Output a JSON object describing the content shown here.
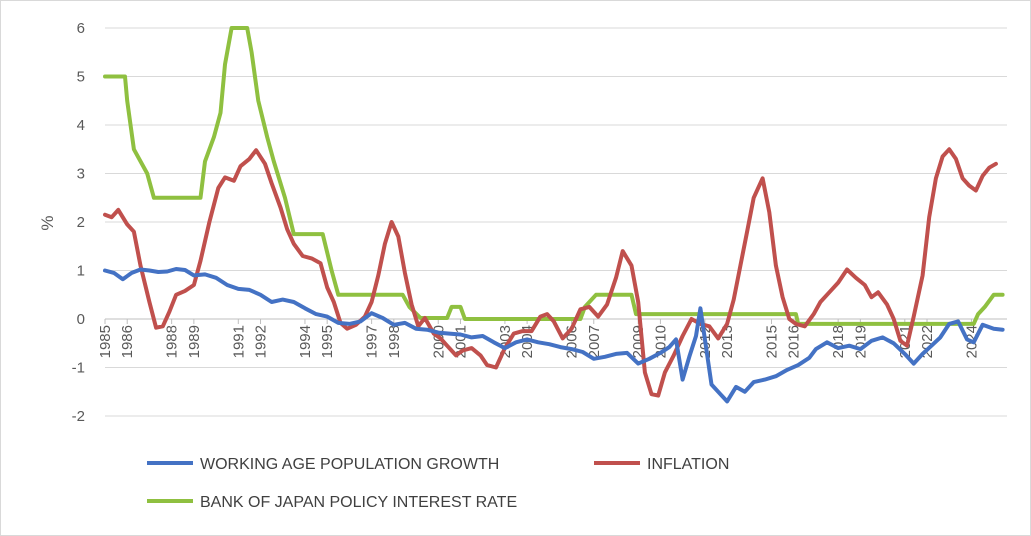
{
  "chart_data": {
    "type": "line",
    "title": "",
    "xlabel": "",
    "ylabel": "%",
    "xlim": [
      1985.0,
      2025.6
    ],
    "ylim": [
      -2,
      6
    ],
    "y_ticks": [
      -2,
      -1,
      0,
      1,
      2,
      3,
      4,
      5,
      6
    ],
    "x_ticks": [
      1985,
      1986,
      1988,
      1989,
      1991,
      1992,
      1994,
      1995,
      1997,
      1998,
      2000,
      2001,
      2003,
      2004,
      2006,
      2007,
      2009,
      2010,
      2012,
      2013,
      2015,
      2016,
      2018,
      2019,
      2021,
      2022,
      2024
    ],
    "grid": "horizontal",
    "legend_position": "bottom",
    "series": [
      {
        "name": "WORKING AGE POPULATION GROWTH",
        "color": "#4472c4",
        "points": [
          [
            1985.0,
            1.0
          ],
          [
            1985.4,
            0.95
          ],
          [
            1985.8,
            0.82
          ],
          [
            1986.2,
            0.95
          ],
          [
            1986.6,
            1.02
          ],
          [
            1987.0,
            1.0
          ],
          [
            1987.4,
            0.97
          ],
          [
            1987.8,
            0.98
          ],
          [
            1988.2,
            1.03
          ],
          [
            1988.6,
            1.01
          ],
          [
            1989.0,
            0.9
          ],
          [
            1989.5,
            0.92
          ],
          [
            1990.0,
            0.85
          ],
          [
            1990.5,
            0.7
          ],
          [
            1991.0,
            0.62
          ],
          [
            1991.5,
            0.6
          ],
          [
            1992.0,
            0.5
          ],
          [
            1992.5,
            0.35
          ],
          [
            1993.0,
            0.4
          ],
          [
            1993.5,
            0.35
          ],
          [
            1994.0,
            0.22
          ],
          [
            1994.5,
            0.1
          ],
          [
            1995.0,
            0.05
          ],
          [
            1995.5,
            -0.08
          ],
          [
            1996.0,
            -0.1
          ],
          [
            1996.5,
            -0.05
          ],
          [
            1997.0,
            0.12
          ],
          [
            1997.5,
            0.02
          ],
          [
            1998.0,
            -0.12
          ],
          [
            1998.5,
            -0.08
          ],
          [
            1999.0,
            -0.2
          ],
          [
            1999.5,
            -0.22
          ],
          [
            2000.0,
            -0.28
          ],
          [
            2000.5,
            -0.3
          ],
          [
            2001.0,
            -0.32
          ],
          [
            2001.5,
            -0.38
          ],
          [
            2002.0,
            -0.35
          ],
          [
            2002.5,
            -0.48
          ],
          [
            2003.0,
            -0.6
          ],
          [
            2003.5,
            -0.48
          ],
          [
            2004.0,
            -0.42
          ],
          [
            2004.5,
            -0.48
          ],
          [
            2005.0,
            -0.52
          ],
          [
            2005.5,
            -0.58
          ],
          [
            2006.0,
            -0.62
          ],
          [
            2006.5,
            -0.68
          ],
          [
            2007.0,
            -0.82
          ],
          [
            2007.5,
            -0.78
          ],
          [
            2008.0,
            -0.72
          ],
          [
            2008.5,
            -0.7
          ],
          [
            2009.0,
            -0.92
          ],
          [
            2009.5,
            -0.82
          ],
          [
            2010.0,
            -0.7
          ],
          [
            2010.4,
            -0.58
          ],
          [
            2010.7,
            -0.42
          ],
          [
            2011.0,
            -1.25
          ],
          [
            2011.3,
            -0.78
          ],
          [
            2011.6,
            -0.35
          ],
          [
            2011.8,
            0.22
          ],
          [
            2012.0,
            -0.42
          ],
          [
            2012.3,
            -1.35
          ],
          [
            2012.7,
            -1.55
          ],
          [
            2013.0,
            -1.7
          ],
          [
            2013.4,
            -1.4
          ],
          [
            2013.8,
            -1.5
          ],
          [
            2014.2,
            -1.3
          ],
          [
            2014.7,
            -1.25
          ],
          [
            2015.2,
            -1.18
          ],
          [
            2015.7,
            -1.05
          ],
          [
            2016.2,
            -0.95
          ],
          [
            2016.7,
            -0.8
          ],
          [
            2017.0,
            -0.62
          ],
          [
            2017.5,
            -0.48
          ],
          [
            2018.0,
            -0.6
          ],
          [
            2018.5,
            -0.55
          ],
          [
            2019.0,
            -0.62
          ],
          [
            2019.5,
            -0.45
          ],
          [
            2020.0,
            -0.38
          ],
          [
            2020.5,
            -0.5
          ],
          [
            2021.0,
            -0.72
          ],
          [
            2021.4,
            -0.92
          ],
          [
            2021.8,
            -0.72
          ],
          [
            2022.2,
            -0.55
          ],
          [
            2022.6,
            -0.38
          ],
          [
            2023.0,
            -0.1
          ],
          [
            2023.4,
            -0.05
          ],
          [
            2023.8,
            -0.42
          ],
          [
            2024.1,
            -0.48
          ],
          [
            2024.5,
            -0.12
          ],
          [
            2025.0,
            -0.2
          ],
          [
            2025.4,
            -0.22
          ]
        ]
      },
      {
        "name": "INFLATION",
        "color": "#c0504d",
        "points": [
          [
            1985.0,
            2.15
          ],
          [
            1985.3,
            2.1
          ],
          [
            1985.6,
            2.25
          ],
          [
            1986.0,
            1.95
          ],
          [
            1986.3,
            1.8
          ],
          [
            1986.6,
            1.1
          ],
          [
            1987.0,
            0.35
          ],
          [
            1987.3,
            -0.18
          ],
          [
            1987.6,
            -0.15
          ],
          [
            1987.9,
            0.15
          ],
          [
            1988.2,
            0.5
          ],
          [
            1988.6,
            0.58
          ],
          [
            1989.0,
            0.7
          ],
          [
            1989.3,
            1.2
          ],
          [
            1989.7,
            2.0
          ],
          [
            1990.1,
            2.7
          ],
          [
            1990.4,
            2.92
          ],
          [
            1990.8,
            2.85
          ],
          [
            1991.1,
            3.15
          ],
          [
            1991.5,
            3.3
          ],
          [
            1991.8,
            3.48
          ],
          [
            1992.2,
            3.2
          ],
          [
            1992.5,
            2.8
          ],
          [
            1992.9,
            2.3
          ],
          [
            1993.2,
            1.85
          ],
          [
            1993.5,
            1.55
          ],
          [
            1993.9,
            1.3
          ],
          [
            1994.3,
            1.25
          ],
          [
            1994.7,
            1.15
          ],
          [
            1995.0,
            0.65
          ],
          [
            1995.3,
            0.35
          ],
          [
            1995.6,
            -0.08
          ],
          [
            1995.9,
            -0.2
          ],
          [
            1996.3,
            -0.12
          ],
          [
            1996.7,
            0.05
          ],
          [
            1997.0,
            0.35
          ],
          [
            1997.3,
            0.9
          ],
          [
            1997.6,
            1.55
          ],
          [
            1997.9,
            2.0
          ],
          [
            1998.2,
            1.7
          ],
          [
            1998.5,
            0.95
          ],
          [
            1998.8,
            0.3
          ],
          [
            1999.1,
            -0.15
          ],
          [
            1999.4,
            0.02
          ],
          [
            1999.8,
            -0.3
          ],
          [
            2000.1,
            -0.4
          ],
          [
            2000.4,
            -0.55
          ],
          [
            2000.8,
            -0.75
          ],
          [
            2001.1,
            -0.65
          ],
          [
            2001.5,
            -0.6
          ],
          [
            2001.9,
            -0.75
          ],
          [
            2002.2,
            -0.95
          ],
          [
            2002.6,
            -1.0
          ],
          [
            2003.0,
            -0.6
          ],
          [
            2003.4,
            -0.3
          ],
          [
            2003.8,
            -0.25
          ],
          [
            2004.2,
            -0.25
          ],
          [
            2004.6,
            0.05
          ],
          [
            2004.9,
            0.1
          ],
          [
            2005.2,
            -0.05
          ],
          [
            2005.6,
            -0.4
          ],
          [
            2006.0,
            -0.2
          ],
          [
            2006.4,
            0.2
          ],
          [
            2006.8,
            0.25
          ],
          [
            2007.2,
            0.05
          ],
          [
            2007.6,
            0.3
          ],
          [
            2008.0,
            0.85
          ],
          [
            2008.3,
            1.4
          ],
          [
            2008.7,
            1.1
          ],
          [
            2009.0,
            0.35
          ],
          [
            2009.3,
            -1.1
          ],
          [
            2009.6,
            -1.55
          ],
          [
            2009.9,
            -1.58
          ],
          [
            2010.2,
            -1.1
          ],
          [
            2010.6,
            -0.75
          ],
          [
            2011.0,
            -0.35
          ],
          [
            2011.4,
            0.0
          ],
          [
            2011.8,
            -0.1
          ],
          [
            2012.2,
            -0.15
          ],
          [
            2012.6,
            -0.4
          ],
          [
            2013.0,
            -0.1
          ],
          [
            2013.3,
            0.4
          ],
          [
            2013.6,
            1.1
          ],
          [
            2013.9,
            1.8
          ],
          [
            2014.2,
            2.5
          ],
          [
            2014.6,
            2.9
          ],
          [
            2014.9,
            2.2
          ],
          [
            2015.2,
            1.1
          ],
          [
            2015.5,
            0.45
          ],
          [
            2015.8,
            0.0
          ],
          [
            2016.1,
            -0.1
          ],
          [
            2016.5,
            -0.15
          ],
          [
            2016.9,
            0.1
          ],
          [
            2017.2,
            0.35
          ],
          [
            2017.6,
            0.55
          ],
          [
            2018.0,
            0.75
          ],
          [
            2018.4,
            1.02
          ],
          [
            2018.8,
            0.85
          ],
          [
            2019.2,
            0.7
          ],
          [
            2019.5,
            0.45
          ],
          [
            2019.8,
            0.55
          ],
          [
            2020.2,
            0.3
          ],
          [
            2020.5,
            0.0
          ],
          [
            2020.8,
            -0.45
          ],
          [
            2021.1,
            -0.55
          ],
          [
            2021.4,
            0.05
          ],
          [
            2021.8,
            0.9
          ],
          [
            2022.1,
            2.1
          ],
          [
            2022.4,
            2.9
          ],
          [
            2022.7,
            3.35
          ],
          [
            2023.0,
            3.5
          ],
          [
            2023.3,
            3.3
          ],
          [
            2023.6,
            2.9
          ],
          [
            2023.9,
            2.75
          ],
          [
            2024.2,
            2.65
          ],
          [
            2024.5,
            2.95
          ],
          [
            2024.8,
            3.12
          ],
          [
            2025.1,
            3.2
          ]
        ]
      },
      {
        "name": "BANK OF JAPAN POLICY INTEREST RATE",
        "color": "#8fc040",
        "points": [
          [
            1985.0,
            5.0
          ],
          [
            1985.9,
            5.0
          ],
          [
            1986.0,
            4.5
          ],
          [
            1986.3,
            3.5
          ],
          [
            1986.9,
            3.0
          ],
          [
            1987.2,
            2.5
          ],
          [
            1989.3,
            2.5
          ],
          [
            1989.5,
            3.25
          ],
          [
            1989.9,
            3.75
          ],
          [
            1990.2,
            4.25
          ],
          [
            1990.4,
            5.25
          ],
          [
            1990.7,
            6.0
          ],
          [
            1991.4,
            6.0
          ],
          [
            1991.6,
            5.5
          ],
          [
            1991.9,
            4.5
          ],
          [
            1992.3,
            3.75
          ],
          [
            1992.6,
            3.25
          ],
          [
            1993.1,
            2.5
          ],
          [
            1993.5,
            1.75
          ],
          [
            1994.8,
            1.75
          ],
          [
            1995.2,
            1.0
          ],
          [
            1995.5,
            0.5
          ],
          [
            1998.4,
            0.5
          ],
          [
            1998.7,
            0.25
          ],
          [
            1999.2,
            0.02
          ],
          [
            2000.4,
            0.02
          ],
          [
            2000.6,
            0.25
          ],
          [
            2001.0,
            0.25
          ],
          [
            2001.2,
            0.0
          ],
          [
            2006.4,
            0.0
          ],
          [
            2006.6,
            0.25
          ],
          [
            2007.1,
            0.5
          ],
          [
            2008.7,
            0.5
          ],
          [
            2008.9,
            0.1
          ],
          [
            2016.1,
            0.1
          ],
          [
            2016.2,
            -0.1
          ],
          [
            2024.1,
            -0.1
          ],
          [
            2024.3,
            0.1
          ],
          [
            2024.6,
            0.25
          ],
          [
            2025.0,
            0.5
          ],
          [
            2025.4,
            0.5
          ]
        ]
      }
    ]
  }
}
